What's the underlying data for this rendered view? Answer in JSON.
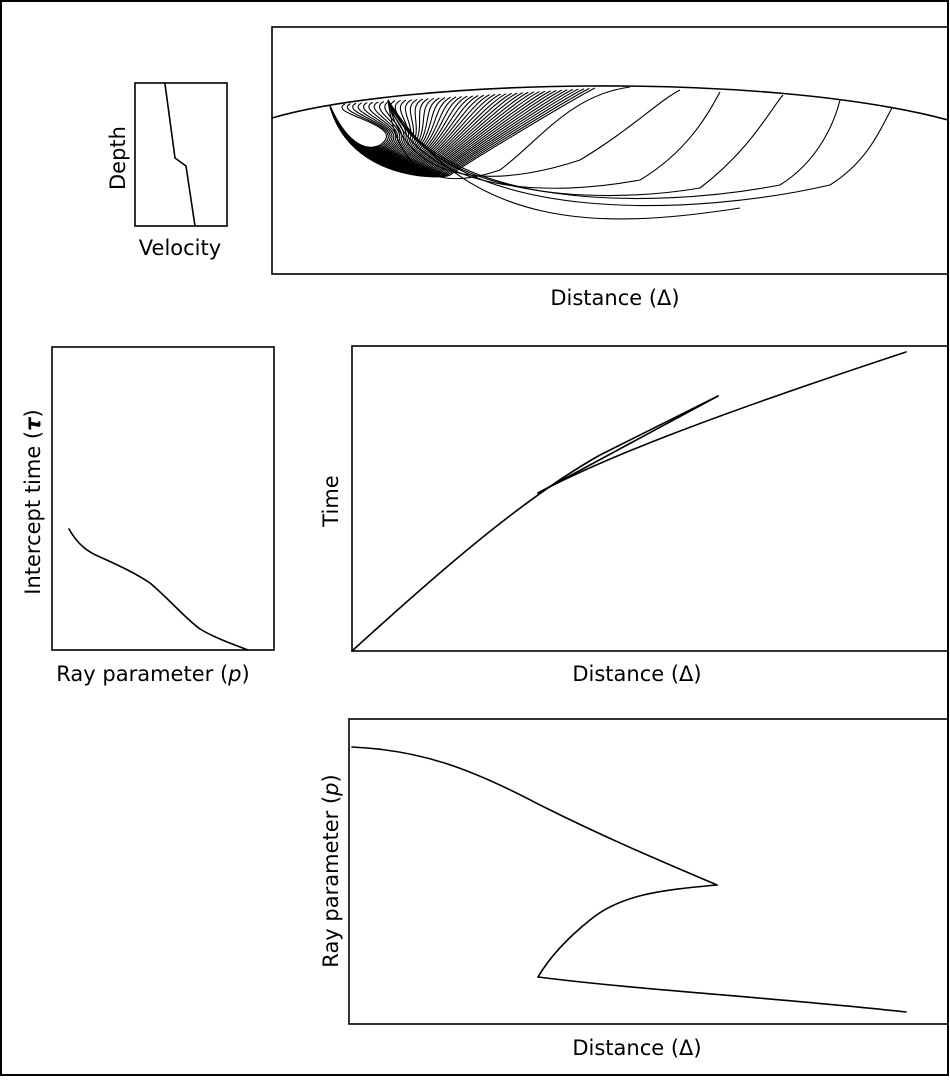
{
  "panels": {
    "velocity_model": {
      "xlabel": "Velocity",
      "ylabel": "Depth"
    },
    "ray_paths": {
      "xlabel": "Distance (Δ)"
    },
    "tau_p": {
      "xlabel_main": "Ray parameter (",
      "xlabel_symbol": "p",
      "xlabel_close": ")",
      "ylabel_main": "Intercept time (",
      "ylabel_symbol": "τ",
      "ylabel_close": ")"
    },
    "travel_time": {
      "xlabel": "Distance (Δ)",
      "ylabel": "Time"
    },
    "p_delta": {
      "xlabel": "Distance (Δ)",
      "ylabel_main": "Ray parameter (",
      "ylabel_symbol": "p",
      "ylabel_close": ")"
    }
  },
  "colors": {
    "line": "#000000",
    "background": "#ffffff"
  }
}
